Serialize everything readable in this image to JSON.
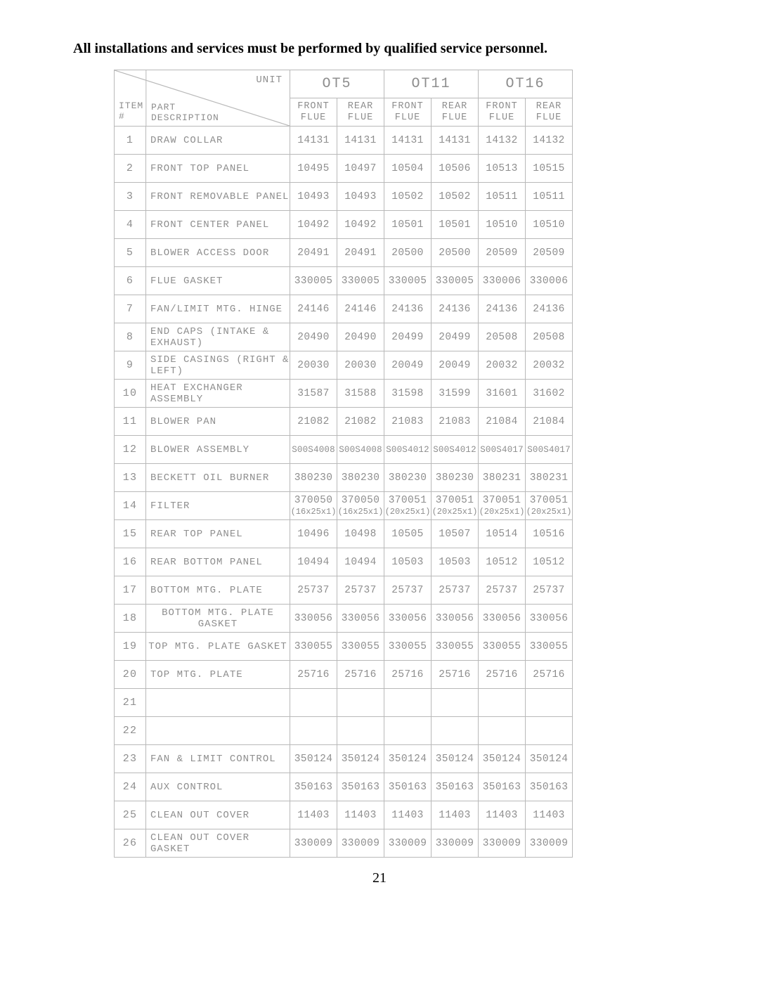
{
  "notice_text": "All installations and services must be performed by qualified service personnel.",
  "page_number": "21",
  "header": {
    "diag_unit": "UNIT",
    "diag_item1": "ITEM",
    "diag_item2": "#",
    "diag_part1": "PART",
    "diag_part2": "DESCRIPTION",
    "units": [
      "OT5",
      "OT11",
      "OT16"
    ],
    "sub": [
      "FRONT",
      "FLUE",
      "REAR",
      "FLUE"
    ]
  },
  "rows": [
    {
      "n": "1",
      "desc": "DRAW COLLAR",
      "align": "left",
      "v": [
        "14131",
        "14131",
        "14131",
        "14131",
        "14132",
        "14132"
      ]
    },
    {
      "n": "2",
      "desc": "FRONT TOP PANEL",
      "align": "left",
      "v": [
        "10495",
        "10497",
        "10504",
        "10506",
        "10513",
        "10515"
      ]
    },
    {
      "n": "3",
      "desc": "FRONT REMOVABLE PANEL",
      "align": "left",
      "v": [
        "10493",
        "10493",
        "10502",
        "10502",
        "10511",
        "10511"
      ]
    },
    {
      "n": "4",
      "desc": "FRONT CENTER PANEL",
      "align": "left",
      "v": [
        "10492",
        "10492",
        "10501",
        "10501",
        "10510",
        "10510"
      ]
    },
    {
      "n": "5",
      "desc": "BLOWER ACCESS DOOR",
      "align": "left",
      "v": [
        "20491",
        "20491",
        "20500",
        "20500",
        "20509",
        "20509"
      ]
    },
    {
      "n": "6",
      "desc": "FLUE GASKET",
      "align": "left",
      "v": [
        "330005",
        "330005",
        "330005",
        "330005",
        "330006",
        "330006"
      ]
    },
    {
      "n": "7",
      "desc": "FAN/LIMIT MTG. HINGE",
      "align": "left",
      "v": [
        "24146",
        "24146",
        "24136",
        "24136",
        "24136",
        "24136"
      ]
    },
    {
      "n": "8",
      "desc": "END CAPS (INTAKE & EXHAUST)",
      "align": "left",
      "v": [
        "20490",
        "20490",
        "20499",
        "20499",
        "20508",
        "20508"
      ]
    },
    {
      "n": "9",
      "desc": "SIDE CASINGS (RIGHT & LEFT)",
      "align": "left",
      "v": [
        "20030",
        "20030",
        "20049",
        "20049",
        "20032",
        "20032"
      ]
    },
    {
      "n": "10",
      "desc": "HEAT EXCHANGER ASSEMBLY",
      "align": "left",
      "v": [
        "31587",
        "31588",
        "31598",
        "31599",
        "31601",
        "31602"
      ]
    },
    {
      "n": "11",
      "desc": "BLOWER PAN",
      "align": "left",
      "v": [
        "21082",
        "21082",
        "21083",
        "21083",
        "21084",
        "21084"
      ]
    },
    {
      "n": "12",
      "desc": "BLOWER ASSEMBLY",
      "align": "left",
      "small": true,
      "v": [
        "S00S4008",
        "S00S4008",
        "S00S4012",
        "S00S4012",
        "S00S4017",
        "S00S4017"
      ]
    },
    {
      "n": "13",
      "desc": "BECKETT OIL BURNER",
      "align": "left",
      "v": [
        "380230",
        "380230",
        "380230",
        "380230",
        "380231",
        "380231"
      ]
    },
    {
      "n": "14",
      "desc": "FILTER",
      "align": "left",
      "v": [
        "370050",
        "370050",
        "370051",
        "370051",
        "370051",
        "370051"
      ],
      "note": [
        "(16x25x1)",
        "(16x25x1)",
        "(20x25x1)",
        "(20x25x1)",
        "(20x25x1)",
        "(20x25x1)"
      ]
    },
    {
      "n": "15",
      "desc": "REAR TOP PANEL",
      "align": "left",
      "v": [
        "10496",
        "10498",
        "10505",
        "10507",
        "10514",
        "10516"
      ]
    },
    {
      "n": "16",
      "desc": "REAR BOTTOM PANEL",
      "align": "left",
      "v": [
        "10494",
        "10494",
        "10503",
        "10503",
        "10512",
        "10512"
      ]
    },
    {
      "n": "17",
      "desc": "BOTTOM MTG. PLATE",
      "align": "left",
      "v": [
        "25737",
        "25737",
        "25737",
        "25737",
        "25737",
        "25737"
      ]
    },
    {
      "n": "18",
      "desc": "BOTTOM MTG. PLATE GASKET",
      "align": "center",
      "v": [
        "330056",
        "330056",
        "330056",
        "330056",
        "330056",
        "330056"
      ]
    },
    {
      "n": "19",
      "desc": "TOP MTG. PLATE GASKET",
      "align": "center",
      "v": [
        "330055",
        "330055",
        "330055",
        "330055",
        "330055",
        "330055"
      ]
    },
    {
      "n": "20",
      "desc": "TOP MTG. PLATE",
      "align": "left",
      "v": [
        "25716",
        "25716",
        "25716",
        "25716",
        "25716",
        "25716"
      ]
    },
    {
      "n": "21",
      "desc": "",
      "align": "left",
      "v": [
        "",
        "",
        "",
        "",
        "",
        ""
      ]
    },
    {
      "n": "22",
      "desc": "",
      "align": "left",
      "v": [
        "",
        "",
        "",
        "",
        "",
        ""
      ]
    },
    {
      "n": "23",
      "desc": "FAN & LIMIT CONTROL",
      "align": "left",
      "v": [
        "350124",
        "350124",
        "350124",
        "350124",
        "350124",
        "350124"
      ]
    },
    {
      "n": "24",
      "desc": "AUX CONTROL",
      "align": "left",
      "v": [
        "350163",
        "350163",
        "350163",
        "350163",
        "350163",
        "350163"
      ]
    },
    {
      "n": "25",
      "desc": "CLEAN OUT COVER",
      "align": "left",
      "v": [
        "11403",
        "11403",
        "11403",
        "11403",
        "11403",
        "11403"
      ]
    },
    {
      "n": "26",
      "desc": "CLEAN OUT COVER GASKET",
      "align": "left",
      "v": [
        "330009",
        "330009",
        "330009",
        "330009",
        "330009",
        "330009"
      ]
    }
  ]
}
